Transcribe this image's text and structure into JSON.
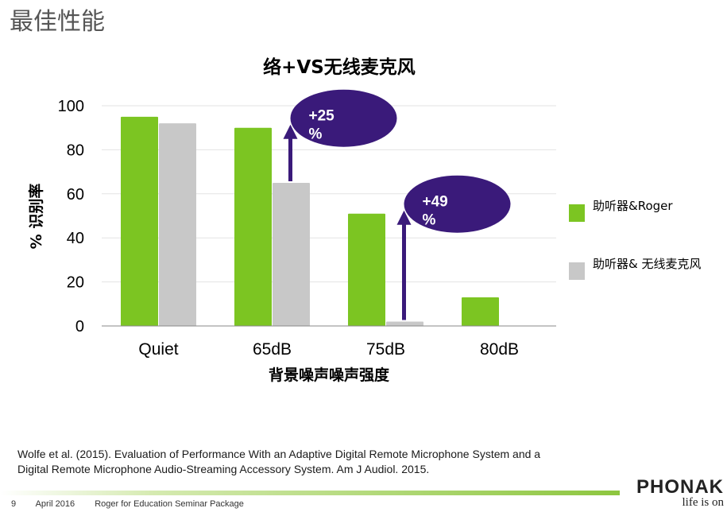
{
  "slide": {
    "title": "最佳性能",
    "citation_line1": "Wolfe et al. (2015). Evaluation of Performance With an Adaptive Digital Remote Microphone System and a",
    "citation_line2": "Digital Remote Microphone Audio-Streaming Accessory System. Am J Audiol. 2015.",
    "footer": {
      "page": "9",
      "date": "April 2016",
      "package": "Roger for Education Seminar Package"
    },
    "logo": {
      "brand": "PHONAK",
      "tagline": "life is on"
    }
  },
  "colors": {
    "green": "#7cc522",
    "gray": "#c8c8c8",
    "bubble": "#3a1a7a",
    "arrow": "#3a1a7a"
  },
  "chart_data": {
    "type": "bar",
    "title": "络+VS无线麦克风",
    "xlabel": "背景噪声噪声强度",
    "ylabel": "% 识别率",
    "ylim": [
      0,
      100
    ],
    "yticks": [
      "0",
      "20",
      "40",
      "60",
      "80",
      "100"
    ],
    "grid": true,
    "legend_position": "right",
    "categories": [
      "Quiet",
      "65dB",
      "75dB",
      "80dB"
    ],
    "series": [
      {
        "name": "助听器&Roger",
        "color": "#7cc522",
        "values": [
          95,
          90,
          51,
          13
        ]
      },
      {
        "name": "助听器& 无线麦克风",
        "color": "#c8c8c8",
        "values": [
          92,
          65,
          2,
          0
        ]
      }
    ],
    "annotations": [
      {
        "text": "+25",
        "text2": "%",
        "category": "65dB",
        "from": 65,
        "to": 90
      },
      {
        "text": "+49",
        "text2": "%",
        "category": "75dB",
        "from": 2,
        "to": 51
      }
    ]
  }
}
